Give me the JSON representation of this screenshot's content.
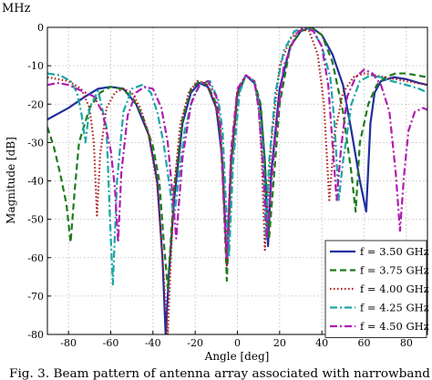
{
  "header_fragment": "MHz",
  "caption_fragment": "Fig. 3. Beam pattern of antenna array associated with narrowband",
  "chart_data": {
    "type": "line",
    "title": "",
    "xlabel": "Angle [deg]",
    "ylabel": "Magnitude [dB]",
    "xlim": [
      -90,
      90
    ],
    "ylim": [
      -80,
      0
    ],
    "xticks": [
      -80,
      -60,
      -40,
      -20,
      0,
      20,
      40,
      60,
      80
    ],
    "yticks": [
      0,
      -10,
      -20,
      -30,
      -40,
      -50,
      -60,
      -70,
      -80
    ],
    "grid": true,
    "legend_position": "lower-right",
    "series": [
      {
        "name": "f = 3.50 GHz",
        "color": "#1f2f9e",
        "dash": "solid",
        "x": [
          -90,
          -80,
          -72,
          -66,
          -60,
          -54,
          -48,
          -42,
          -38,
          -35.5,
          -34,
          -32.5,
          -30,
          -26,
          -22,
          -18,
          -14,
          -10,
          -7,
          -5,
          -3,
          0,
          4,
          8,
          11,
          13,
          14.5,
          16,
          20,
          25,
          30,
          35,
          40,
          45,
          50,
          54,
          58,
          61,
          63,
          65,
          68,
          74,
          80,
          86,
          90
        ],
        "y": [
          -24,
          -21,
          -18,
          -16,
          -15.5,
          -16,
          -20,
          -28,
          -40,
          -60,
          -80,
          -65,
          -45,
          -25,
          -17,
          -14.5,
          -15.5,
          -21,
          -35,
          -62,
          -35,
          -17,
          -12.5,
          -14.5,
          -21,
          -35,
          -57,
          -38,
          -16,
          -5,
          -1,
          0,
          -2,
          -7,
          -15,
          -27,
          -40,
          -48,
          -25,
          -17,
          -14,
          -13,
          -13.5,
          -14.5,
          -15
        ]
      },
      {
        "name": "f = 3.75 GHz",
        "color": "#1e7b1e",
        "dash": "dashed",
        "x": [
          -90,
          -87,
          -84,
          -81,
          -79,
          -77,
          -75,
          -70,
          -65,
          -60,
          -55,
          -50,
          -45,
          -40,
          -37,
          -35,
          -33,
          -30,
          -26,
          -22,
          -18,
          -14,
          -10,
          -8,
          -6.5,
          -5,
          -3,
          0,
          4,
          8,
          11,
          13,
          15,
          20,
          25,
          30,
          35,
          40,
          45,
          50,
          54,
          56,
          58,
          62,
          66,
          70,
          75,
          80,
          85,
          90
        ],
        "y": [
          -26,
          -31,
          -38,
          -46,
          -56,
          -42,
          -30,
          -21,
          -17,
          -15.5,
          -16,
          -18,
          -23,
          -31,
          -40,
          -55,
          -68,
          -42,
          -24,
          -16,
          -14,
          -15,
          -20,
          -28,
          -45,
          -66,
          -38,
          -18,
          -12.5,
          -14,
          -20,
          -35,
          -55,
          -20,
          -5,
          -1,
          0,
          -2,
          -9,
          -22,
          -38,
          -48,
          -30,
          -20,
          -15,
          -13,
          -12,
          -12,
          -12.5,
          -13
        ]
      },
      {
        "name": "f = 4.00 GHz",
        "color": "#b01c1c",
        "dash": "dotted",
        "x": [
          -90,
          -80,
          -74,
          -70,
          -68,
          -66.5,
          -65,
          -62,
          -58,
          -54,
          -50,
          -46,
          -42,
          -38,
          -35,
          -33,
          -31.5,
          -30,
          -27,
          -23,
          -19,
          -15,
          -11,
          -8,
          -6.5,
          -5,
          -3,
          0,
          4,
          8,
          10,
          11.5,
          13,
          16,
          20,
          25,
          30,
          34,
          38,
          41,
          43.5,
          46,
          50,
          55,
          60,
          65,
          70,
          75,
          80,
          85,
          90
        ],
        "y": [
          -13,
          -14,
          -16,
          -21,
          -30,
          -49,
          -33,
          -21,
          -17,
          -16,
          -17,
          -21,
          -28,
          -41,
          -64,
          -80,
          -60,
          -42,
          -25,
          -17,
          -14,
          -14.5,
          -19,
          -27,
          -43,
          -62,
          -36,
          -17,
          -12.5,
          -14,
          -20,
          -34,
          -58,
          -30,
          -10,
          -3,
          -0.5,
          -1,
          -7,
          -20,
          -45,
          -28,
          -17,
          -13,
          -12,
          -12.5,
          -13,
          -13.5,
          -14,
          -14.5,
          -15
        ]
      },
      {
        "name": "f = 4.25 GHz",
        "color": "#1aa6a6",
        "dash": "dashdot",
        "x": [
          -90,
          -84,
          -79,
          -76,
          -74,
          -72,
          -70,
          -66,
          -62,
          -60.5,
          -59,
          -57,
          -54,
          -50,
          -45,
          -41,
          -38,
          -35,
          -32,
          -30,
          -28,
          -25,
          -21,
          -17,
          -13,
          -9,
          -7,
          -5.5,
          -4,
          -2,
          1,
          4,
          8,
          10,
          12,
          13.5,
          15,
          18,
          22,
          27,
          32,
          36,
          40,
          44,
          46,
          48,
          50,
          54,
          58,
          63,
          68,
          73,
          80,
          86,
          90
        ],
        "y": [
          -12,
          -12.5,
          -14,
          -17,
          -22,
          -30,
          -21,
          -16.5,
          -26,
          -48,
          -67,
          -40,
          -22,
          -16,
          -15,
          -17,
          -22,
          -30,
          -42,
          -50,
          -40,
          -27,
          -18,
          -14.5,
          -14,
          -19,
          -27,
          -45,
          -60,
          -35,
          -17,
          -12.5,
          -14,
          -20,
          -32,
          -55,
          -35,
          -17,
          -6,
          -1,
          0,
          -1,
          -5,
          -13,
          -25,
          -45,
          -35,
          -20,
          -14,
          -12.5,
          -13,
          -14,
          -15,
          -16,
          -17
        ]
      },
      {
        "name": "f = 4.50 GHz",
        "color": "#b01cb0",
        "dash": "dashdot",
        "x": [
          -90,
          -85,
          -80,
          -76,
          -72,
          -68,
          -64,
          -60,
          -58,
          -56.5,
          -55,
          -52,
          -48,
          -44,
          -40,
          -36,
          -33,
          -31,
          -29,
          -26,
          -22,
          -18,
          -14,
          -10,
          -8,
          -6.5,
          -5,
          -3,
          0,
          4,
          8,
          10,
          12,
          14,
          18,
          22,
          28,
          32,
          36,
          40,
          43,
          45,
          47,
          49,
          52,
          56,
          60,
          64,
          68,
          72,
          75,
          77,
          79,
          81,
          84,
          88,
          90
        ],
        "y": [
          -15,
          -14.5,
          -15,
          -16,
          -17,
          -18,
          -22,
          -32,
          -42,
          -56,
          -38,
          -23,
          -17,
          -15.5,
          -16,
          -21,
          -30,
          -42,
          -55,
          -34,
          -20,
          -15,
          -14,
          -18,
          -26,
          -45,
          -60,
          -32,
          -16,
          -12.5,
          -14,
          -21,
          -35,
          -55,
          -28,
          -10,
          -1.5,
          0,
          -1,
          -5,
          -15,
          -30,
          -45,
          -32,
          -18,
          -13,
          -11,
          -12,
          -15,
          -22,
          -38,
          -53,
          -38,
          -27,
          -22,
          -21,
          -21.5
        ]
      }
    ]
  }
}
